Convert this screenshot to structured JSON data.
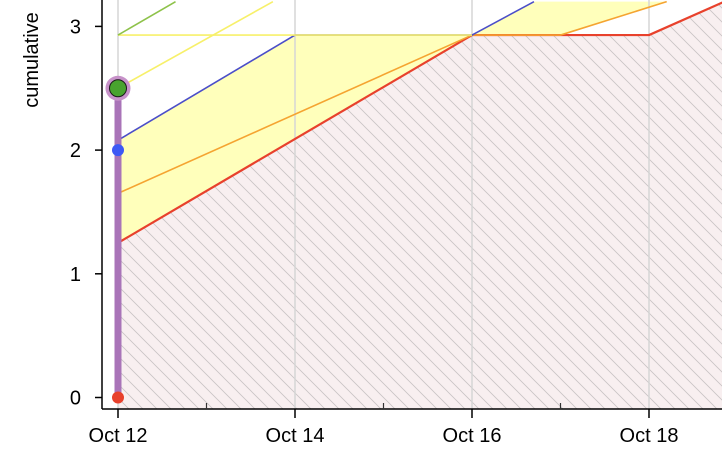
{
  "chart_data": {
    "type": "area",
    "title": "",
    "xlabel": "",
    "ylabel": "cumulative",
    "x_tick_labels": [
      "Oct 12",
      "Oct 14",
      "Oct 16",
      "Oct 18"
    ],
    "x_ticks_days": [
      0,
      2,
      4,
      6
    ],
    "x_minor_ticks_days": [
      1,
      3,
      5
    ],
    "y_tick_labels": [
      "0",
      "1",
      "2",
      "3"
    ],
    "y_ticks": [
      0,
      1,
      2,
      3
    ],
    "xlim_days": [
      -0.2,
      6.85
    ],
    "ylim": [
      -0.1,
      3.2
    ],
    "grid": "vertical",
    "series": [
      {
        "name": "red",
        "color": "#e8412c",
        "points": [
          [
            0,
            1.25
          ],
          [
            4,
            2.93
          ],
          [
            6,
            2.93
          ],
          [
            6.85,
            3.2
          ]
        ]
      },
      {
        "name": "orange",
        "color": "#f5a431",
        "points": [
          [
            0,
            1.65
          ],
          [
            4,
            2.93
          ],
          [
            5,
            2.93
          ],
          [
            6.2,
            3.2
          ]
        ]
      },
      {
        "name": "blue",
        "color": "#4b4ec9",
        "points": [
          [
            0,
            2.08
          ],
          [
            2,
            2.93
          ],
          [
            4,
            2.93
          ],
          [
            4.7,
            3.2
          ]
        ]
      },
      {
        "name": "yellow",
        "color": "#f7f06a",
        "points": [
          [
            0,
            2.5
          ],
          [
            1.75,
            3.2
          ]
        ]
      },
      {
        "name": "yellow-flat",
        "color": "#f7f06a",
        "points": [
          [
            0,
            2.93
          ],
          [
            4,
            2.93
          ]
        ]
      },
      {
        "name": "green",
        "color": "#8ec24a",
        "points": [
          [
            0,
            2.93
          ],
          [
            0.65,
            3.2
          ]
        ]
      }
    ],
    "bands": [
      {
        "name": "red-blue-band",
        "color": "#ffffbb",
        "lower": "red",
        "upper": "blue",
        "x_range_days": [
          0,
          4
        ]
      },
      {
        "name": "orange-blue-band",
        "color": "#ffffbb",
        "lower": "orange",
        "upper": "blue",
        "x_range_days": [
          4,
          6.85
        ]
      }
    ],
    "hatched_region": {
      "below": "red",
      "color": "#f8eff0",
      "hatch_color": "#c8c8c8"
    },
    "cursor": {
      "day": 0,
      "color": "#a974b8",
      "from": 0,
      "to": 2.5
    },
    "markers": [
      {
        "name": "green-point",
        "day": 0,
        "value": 2.5,
        "color": "#48a32e",
        "ring_color": "#c792c9"
      },
      {
        "name": "blue-point",
        "day": 0,
        "value": 2.0,
        "color": "#3d59f5"
      },
      {
        "name": "red-point",
        "day": 0,
        "value": 0.0,
        "color": "#e8412c"
      }
    ]
  }
}
